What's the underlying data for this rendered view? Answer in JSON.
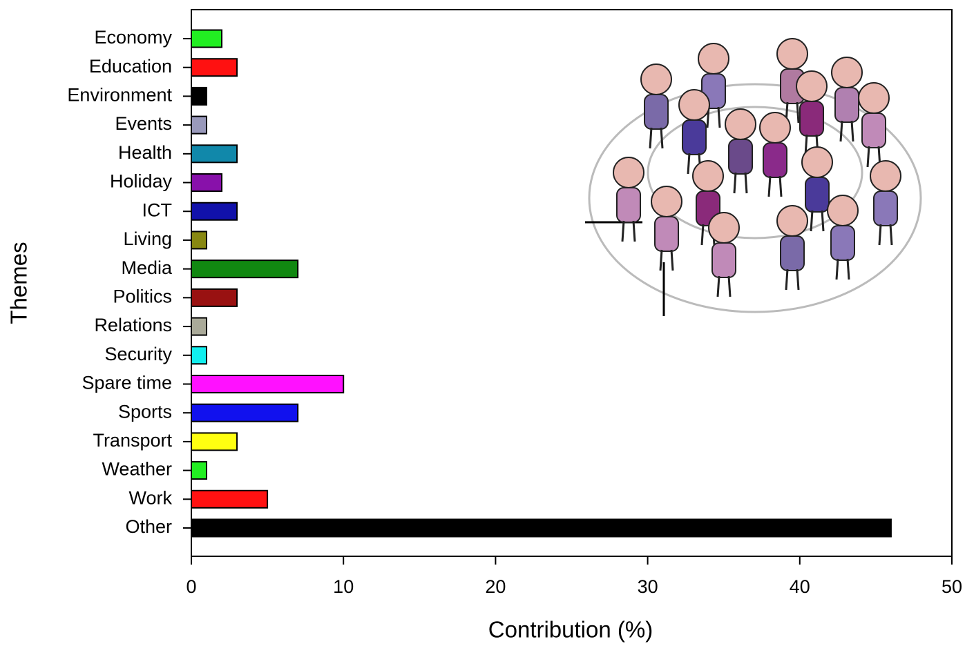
{
  "chart_data": {
    "type": "bar",
    "orientation": "horizontal",
    "x_label": "Contribution (%)",
    "y_label": "Themes",
    "categories": [
      "Economy",
      "Education",
      "Environment",
      "Events",
      "Health",
      "Holiday",
      "ICT",
      "Living",
      "Media",
      "Politics",
      "Relations",
      "Security",
      "Spare time",
      "Sports",
      "Transport",
      "Weather",
      "Work",
      "Other"
    ],
    "values": [
      2,
      3,
      1,
      1,
      3,
      2,
      3,
      1,
      7,
      3,
      1,
      1,
      10,
      7,
      3,
      1,
      5,
      46
    ],
    "colors": [
      "#22ee22",
      "#ff1111",
      "#000000",
      "#9999bb",
      "#1188aa",
      "#8811aa",
      "#1111aa",
      "#888811",
      "#118811",
      "#991111",
      "#aaaa99",
      "#11eeee",
      "#ff11ff",
      "#1111ee",
      "#ffff11",
      "#22ee22",
      "#ff1111",
      "#000000"
    ],
    "xlim": [
      0,
      50
    ],
    "xticks": [
      0,
      10,
      20,
      30,
      40,
      50
    ]
  }
}
